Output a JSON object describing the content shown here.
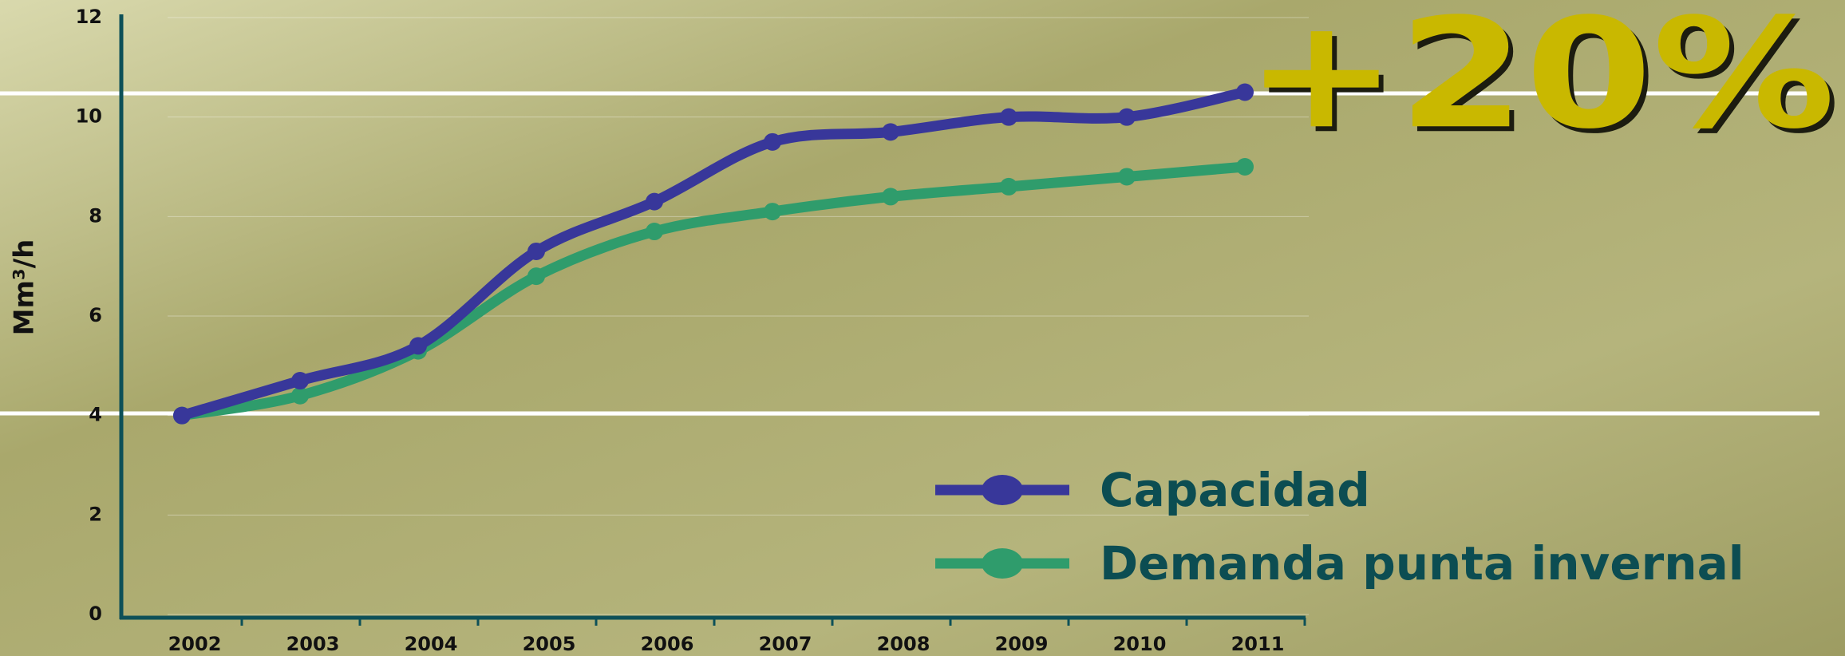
{
  "chart_data": {
    "type": "line",
    "y_label": "Mm³/h",
    "annotation": "+20%",
    "categories": [
      "2002",
      "2003",
      "2004",
      "2005",
      "2006",
      "2007",
      "2008",
      "2009",
      "2010",
      "2011"
    ],
    "series": [
      {
        "name": "Capacidad",
        "color": "#38379a",
        "values": [
          4.0,
          4.7,
          5.4,
          7.3,
          8.3,
          9.5,
          9.7,
          10.0,
          10.0,
          10.5
        ]
      },
      {
        "name": "Demanda punta invernal",
        "color": "#2f9c6c",
        "values": [
          4.0,
          4.4,
          5.3,
          6.8,
          7.7,
          8.1,
          8.4,
          8.6,
          8.8,
          9.0
        ]
      }
    ],
    "ylim": [
      0,
      12
    ],
    "yticks": [
      0,
      2,
      4,
      6,
      8,
      10,
      12
    ],
    "grid": true,
    "legend": "lower right"
  }
}
